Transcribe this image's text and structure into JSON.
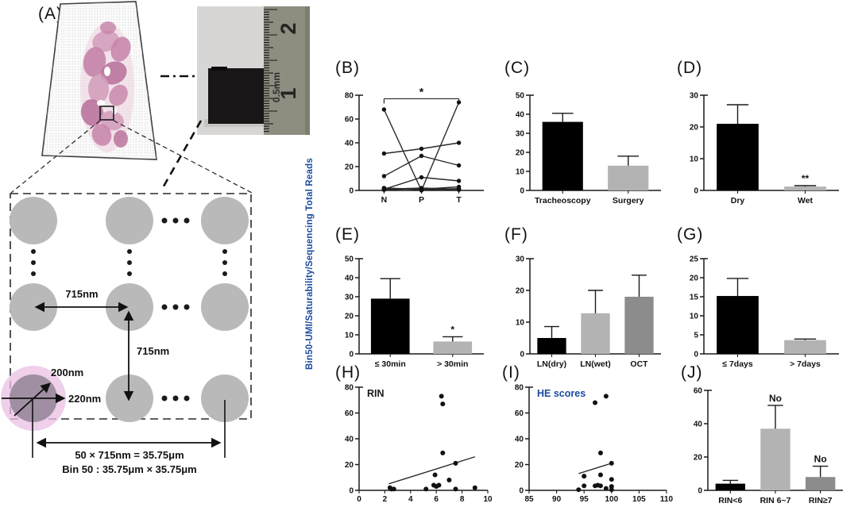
{
  "figure": {
    "panel_a": {
      "label": "(A)",
      "ruler_mark_2": "2",
      "ruler_mark_1": "1",
      "ruler_scale": "0.5mm",
      "pitch_h": "715nm",
      "pitch_v": "715nm",
      "spot_diameter": "200nm",
      "center_distance": "220nm",
      "bin_line1": "50 × 715nm = 35.75μm",
      "bin_line2": "Bin 50 : 35.75μm × 35.75μm"
    },
    "shared_y_axis_label": "Bin50-UMI/Saturability/Sequencing Total Reads",
    "y_label_color": "#1b4a9e",
    "bar_palette": {
      "black": "#000000",
      "light_gray": "#b3b3b3",
      "mid_gray": "#8c8c8c"
    }
  },
  "chart_data": [
    {
      "id": "B",
      "panel": "(B)",
      "type": "line",
      "categories": [
        "N",
        "P",
        "T"
      ],
      "ylim": [
        0,
        80
      ],
      "yticks": [
        0,
        20,
        40,
        60,
        80
      ],
      "series": [
        [
          68,
          0,
          74
        ],
        [
          31,
          35,
          40
        ],
        [
          12,
          29,
          21
        ],
        [
          1,
          11,
          8
        ],
        [
          2,
          1,
          3
        ],
        [
          1,
          2,
          1
        ],
        [
          2,
          0.5,
          1.5
        ],
        [
          0.5,
          1.5,
          0.5
        ]
      ],
      "significance": {
        "from": 0,
        "to": 2,
        "label": "*",
        "y": 77
      }
    },
    {
      "id": "C",
      "panel": "(C)",
      "type": "bar",
      "categories": [
        "Tracheoscopy",
        "Surgery"
      ],
      "values": [
        36,
        13
      ],
      "errors": [
        4.5,
        5
      ],
      "bar_colors": [
        "#000000",
        "#b3b3b3"
      ],
      "ylim": [
        0,
        50
      ],
      "yticks": [
        0,
        10,
        20,
        30,
        40,
        50
      ]
    },
    {
      "id": "D",
      "panel": "(D)",
      "type": "bar",
      "categories": [
        "Dry",
        "Wet"
      ],
      "values": [
        21,
        1.2
      ],
      "errors": [
        6,
        0.3
      ],
      "bar_colors": [
        "#000000",
        "#b3b3b3"
      ],
      "ylim": [
        0,
        30
      ],
      "yticks": [
        0,
        10,
        20,
        30
      ],
      "annotations": [
        {
          "index": 1,
          "label": "**"
        }
      ]
    },
    {
      "id": "E",
      "panel": "(E)",
      "type": "bar",
      "categories": [
        "≤ 30min",
        "> 30min"
      ],
      "values": [
        29,
        6.5
      ],
      "errors": [
        10.5,
        2.5
      ],
      "bar_colors": [
        "#000000",
        "#b3b3b3"
      ],
      "ylim": [
        0,
        50
      ],
      "yticks": [
        0,
        10,
        20,
        30,
        40,
        50
      ],
      "annotations": [
        {
          "index": 1,
          "label": "*"
        }
      ]
    },
    {
      "id": "F",
      "panel": "(F)",
      "type": "bar",
      "categories": [
        "LN(dry)",
        "LN(wet)",
        "OCT"
      ],
      "values": [
        5,
        12.8,
        18
      ],
      "errors": [
        3.6,
        7.2,
        6.8
      ],
      "bar_colors": [
        "#000000",
        "#b3b3b3",
        "#8c8c8c"
      ],
      "ylim": [
        0,
        30
      ],
      "yticks": [
        0,
        10,
        20,
        30
      ]
    },
    {
      "id": "G",
      "panel": "(G)",
      "type": "bar",
      "categories": [
        "≤ 7days",
        "> 7days"
      ],
      "values": [
        15.2,
        3.6
      ],
      "errors": [
        4.6,
        0.3
      ],
      "bar_colors": [
        "#000000",
        "#b3b3b3"
      ],
      "ylim": [
        0,
        25
      ],
      "yticks": [
        0,
        5,
        10,
        15,
        20,
        25
      ]
    },
    {
      "id": "H",
      "panel": "(H)",
      "type": "scatter",
      "label": "RIN",
      "label_color": "#1a1a1a",
      "xlim": [
        0,
        10
      ],
      "xticks": [
        0,
        2,
        4,
        6,
        8,
        10
      ],
      "ylim": [
        0,
        80
      ],
      "yticks": [
        0,
        20,
        40,
        60,
        80
      ],
      "points": [
        [
          2.4,
          2
        ],
        [
          2.5,
          1
        ],
        [
          2.7,
          1
        ],
        [
          5.2,
          1
        ],
        [
          5.8,
          4
        ],
        [
          6.0,
          3
        ],
        [
          6.2,
          4
        ],
        [
          6.4,
          73
        ],
        [
          6.5,
          67
        ],
        [
          6.5,
          29
        ],
        [
          5.9,
          12
        ],
        [
          7.0,
          8
        ],
        [
          7.5,
          21
        ],
        [
          7.5,
          1
        ],
        [
          9.0,
          2
        ]
      ],
      "trend": [
        [
          2.3,
          5
        ],
        [
          9.0,
          26
        ]
      ]
    },
    {
      "id": "I",
      "panel": "(I)",
      "type": "scatter",
      "label": "HE scores",
      "label_color": "#1b4a9e",
      "xlim": [
        85,
        110
      ],
      "xticks": [
        85,
        90,
        95,
        100,
        105,
        110
      ],
      "ylim": [
        0,
        80
      ],
      "yticks": [
        0,
        20,
        40,
        60,
        80
      ],
      "points": [
        [
          94,
          0.5
        ],
        [
          95,
          11
        ],
        [
          95,
          3.5
        ],
        [
          97,
          68
        ],
        [
          97,
          3.5
        ],
        [
          97.5,
          4
        ],
        [
          98,
          29
        ],
        [
          98,
          12
        ],
        [
          98,
          3.5
        ],
        [
          99,
          73
        ],
        [
          99,
          1.5
        ],
        [
          100,
          21
        ],
        [
          100,
          8.5
        ],
        [
          100,
          3
        ],
        [
          100,
          0.5
        ]
      ],
      "trend": [
        [
          94,
          13
        ],
        [
          100,
          21
        ]
      ]
    },
    {
      "id": "J",
      "panel": "(J)",
      "type": "bar",
      "categories": [
        "RIN<6",
        "RIN 6~7",
        "RIN≥7"
      ],
      "values": [
        4,
        37,
        8
      ],
      "errors": [
        2,
        14,
        6.5
      ],
      "bar_colors": [
        "#000000",
        "#b3b3b3",
        "#8c8c8c"
      ],
      "ylim": [
        0,
        60
      ],
      "yticks": [
        0,
        20,
        40,
        60
      ],
      "annotations": [
        {
          "index": 1,
          "label": "No"
        },
        {
          "index": 2,
          "label": "No"
        }
      ]
    }
  ]
}
